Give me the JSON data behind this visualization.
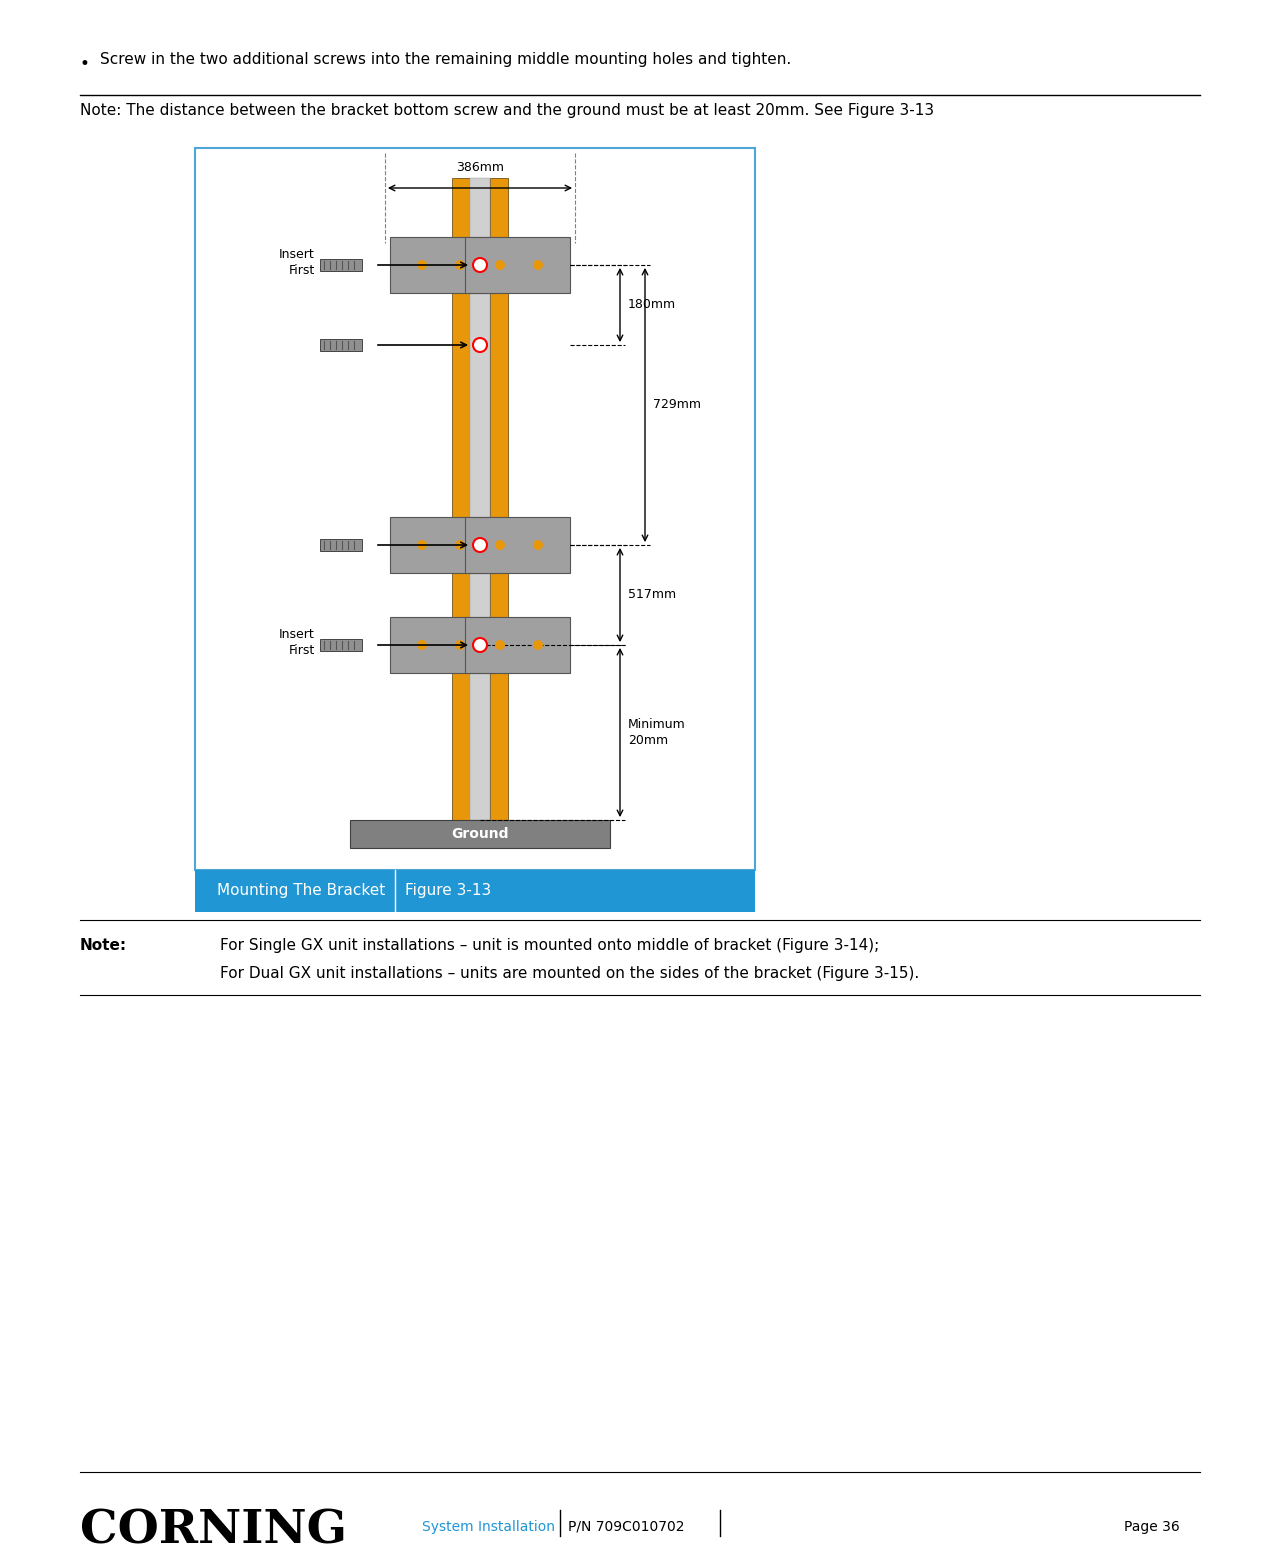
{
  "bullet_text": "Screw in the two additional screws into the remaining middle mounting holes and tighten.",
  "note_text": "Note: The distance between the bracket bottom screw and the ground must be at least 20mm. See Figure 3-13",
  "figure_label": "Mounting The Bracket",
  "figure_number": "Figure 3-13",
  "note2_label": "Note:",
  "note2_line1": "For Single GX unit installations – unit is mounted onto middle of bracket (Figure 3-14);",
  "note2_line2": "For Dual GX unit installations – units are mounted on the sides of the bracket (Figure 3-15).",
  "footer_left": "CORNING",
  "footer_center": "System Installation",
  "footer_pn": "P/N 709C010702",
  "footer_page": "Page 36",
  "dim_386": "386mm",
  "dim_180": "180mm",
  "dim_729": "729mm",
  "dim_517": "517mm",
  "dim_20": "Minimum\n20mm",
  "insert_first": "Insert\nFirst",
  "ground_label": "Ground",
  "bg_color": "#ffffff",
  "border_color": "#4da6d6",
  "caption_bg": "#2196d4",
  "caption_text_color": "#ffffff",
  "orange_color": "#e8960a",
  "gray_color": "#a0a0a0",
  "light_gray": "#d0d0d0",
  "dark_gray": "#606060",
  "ground_gray": "#808080"
}
